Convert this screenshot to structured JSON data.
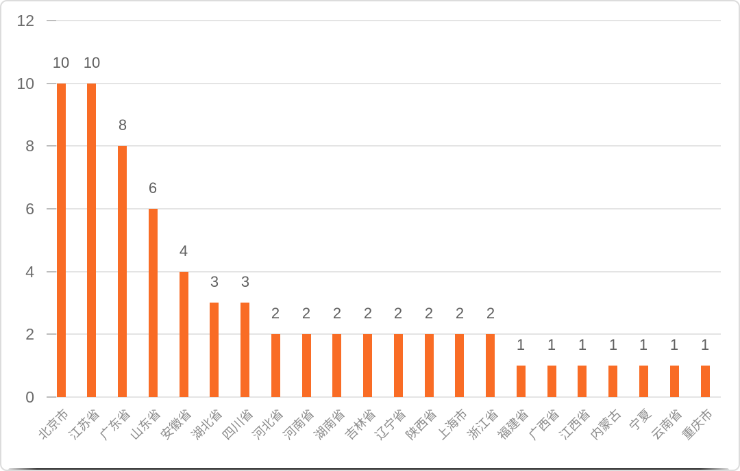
{
  "chart_data": {
    "type": "bar",
    "title": "",
    "xlabel": "",
    "ylabel": "",
    "categories": [
      "北京市",
      "江苏省",
      "广东省",
      "山东省",
      "安徽省",
      "湖北省",
      "四川省",
      "河北省",
      "河南省",
      "湖南省",
      "吉林省",
      "辽宁省",
      "陕西省",
      "上海市",
      "浙江省",
      "福建省",
      "广西省",
      "江西省",
      "内蒙古",
      "宁夏",
      "云南省",
      "重庆市"
    ],
    "values": [
      10,
      10,
      8,
      6,
      4,
      3,
      3,
      2,
      2,
      2,
      2,
      2,
      2,
      2,
      2,
      1,
      1,
      1,
      1,
      1,
      1,
      1
    ],
    "value_labels": [
      "10",
      "10",
      "8",
      "6",
      "4",
      "3",
      "3",
      "2",
      "2",
      "2",
      "2",
      "2",
      "2",
      "2",
      "2",
      "1",
      "1",
      "1",
      "1",
      "1",
      "1",
      "1"
    ],
    "y_ticks": [
      "0",
      "2",
      "4",
      "6",
      "8",
      "10",
      "12"
    ],
    "y_tick_values": [
      0,
      2,
      4,
      6,
      8,
      10,
      12
    ],
    "ylim": [
      0,
      12
    ],
    "grid": true,
    "legend": false,
    "x_label_rotation_deg": 45
  },
  "colors": {
    "bar": "#F96C25",
    "value_label": "#5f5f5f",
    "y_axis_label": "#6b6b6b",
    "x_axis_label": "#8c8c8c",
    "gridline": "#e4e4e4",
    "axis_tick": "#bdbdbd",
    "card_border": "#dcdcdc",
    "bottom_strip": "#1e1e1e",
    "background": "#ffffff"
  }
}
